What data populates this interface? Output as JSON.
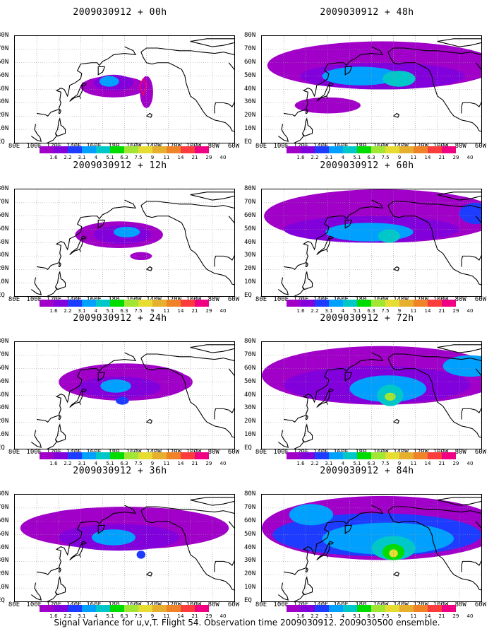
{
  "footer": "Signal Variance for u,v,T. Flight 54. Observation time 2009030912. 2009030500 ensemble.",
  "lat_labels": [
    "80N",
    "70N",
    "60N",
    "50N",
    "40N",
    "30N",
    "20N",
    "10N",
    "EQ"
  ],
  "lon_labels": [
    "80E",
    "100E",
    "120E",
    "140E",
    "160E",
    "180",
    "160W",
    "140W",
    "120W",
    "100W",
    "80W",
    "60W"
  ],
  "colorbar": {
    "labels": [
      "1.6",
      "2.2",
      "3.1",
      "4",
      "5.1",
      "6.3",
      "7.5",
      "9",
      "11",
      "14",
      "21",
      "29",
      "40"
    ],
    "colors": [
      "#a000c8",
      "#8200dc",
      "#1e3cff",
      "#00a0ff",
      "#00c8c8",
      "#00dc00",
      "#a0e632",
      "#e6dc32",
      "#e6af2d",
      "#f08228",
      "#fa3c3c",
      "#f00082"
    ]
  },
  "panels": [
    {
      "title": "2009030912 + 00h"
    },
    {
      "title": "2009030912 + 48h"
    },
    {
      "title": "2009030912 + 12h"
    },
    {
      "title": "2009030912 + 60h"
    },
    {
      "title": "2009030912 + 24h"
    },
    {
      "title": "2009030912 + 72h"
    },
    {
      "title": "2009030912 + 36h"
    },
    {
      "title": "2009030912 + 84h"
    }
  ]
}
